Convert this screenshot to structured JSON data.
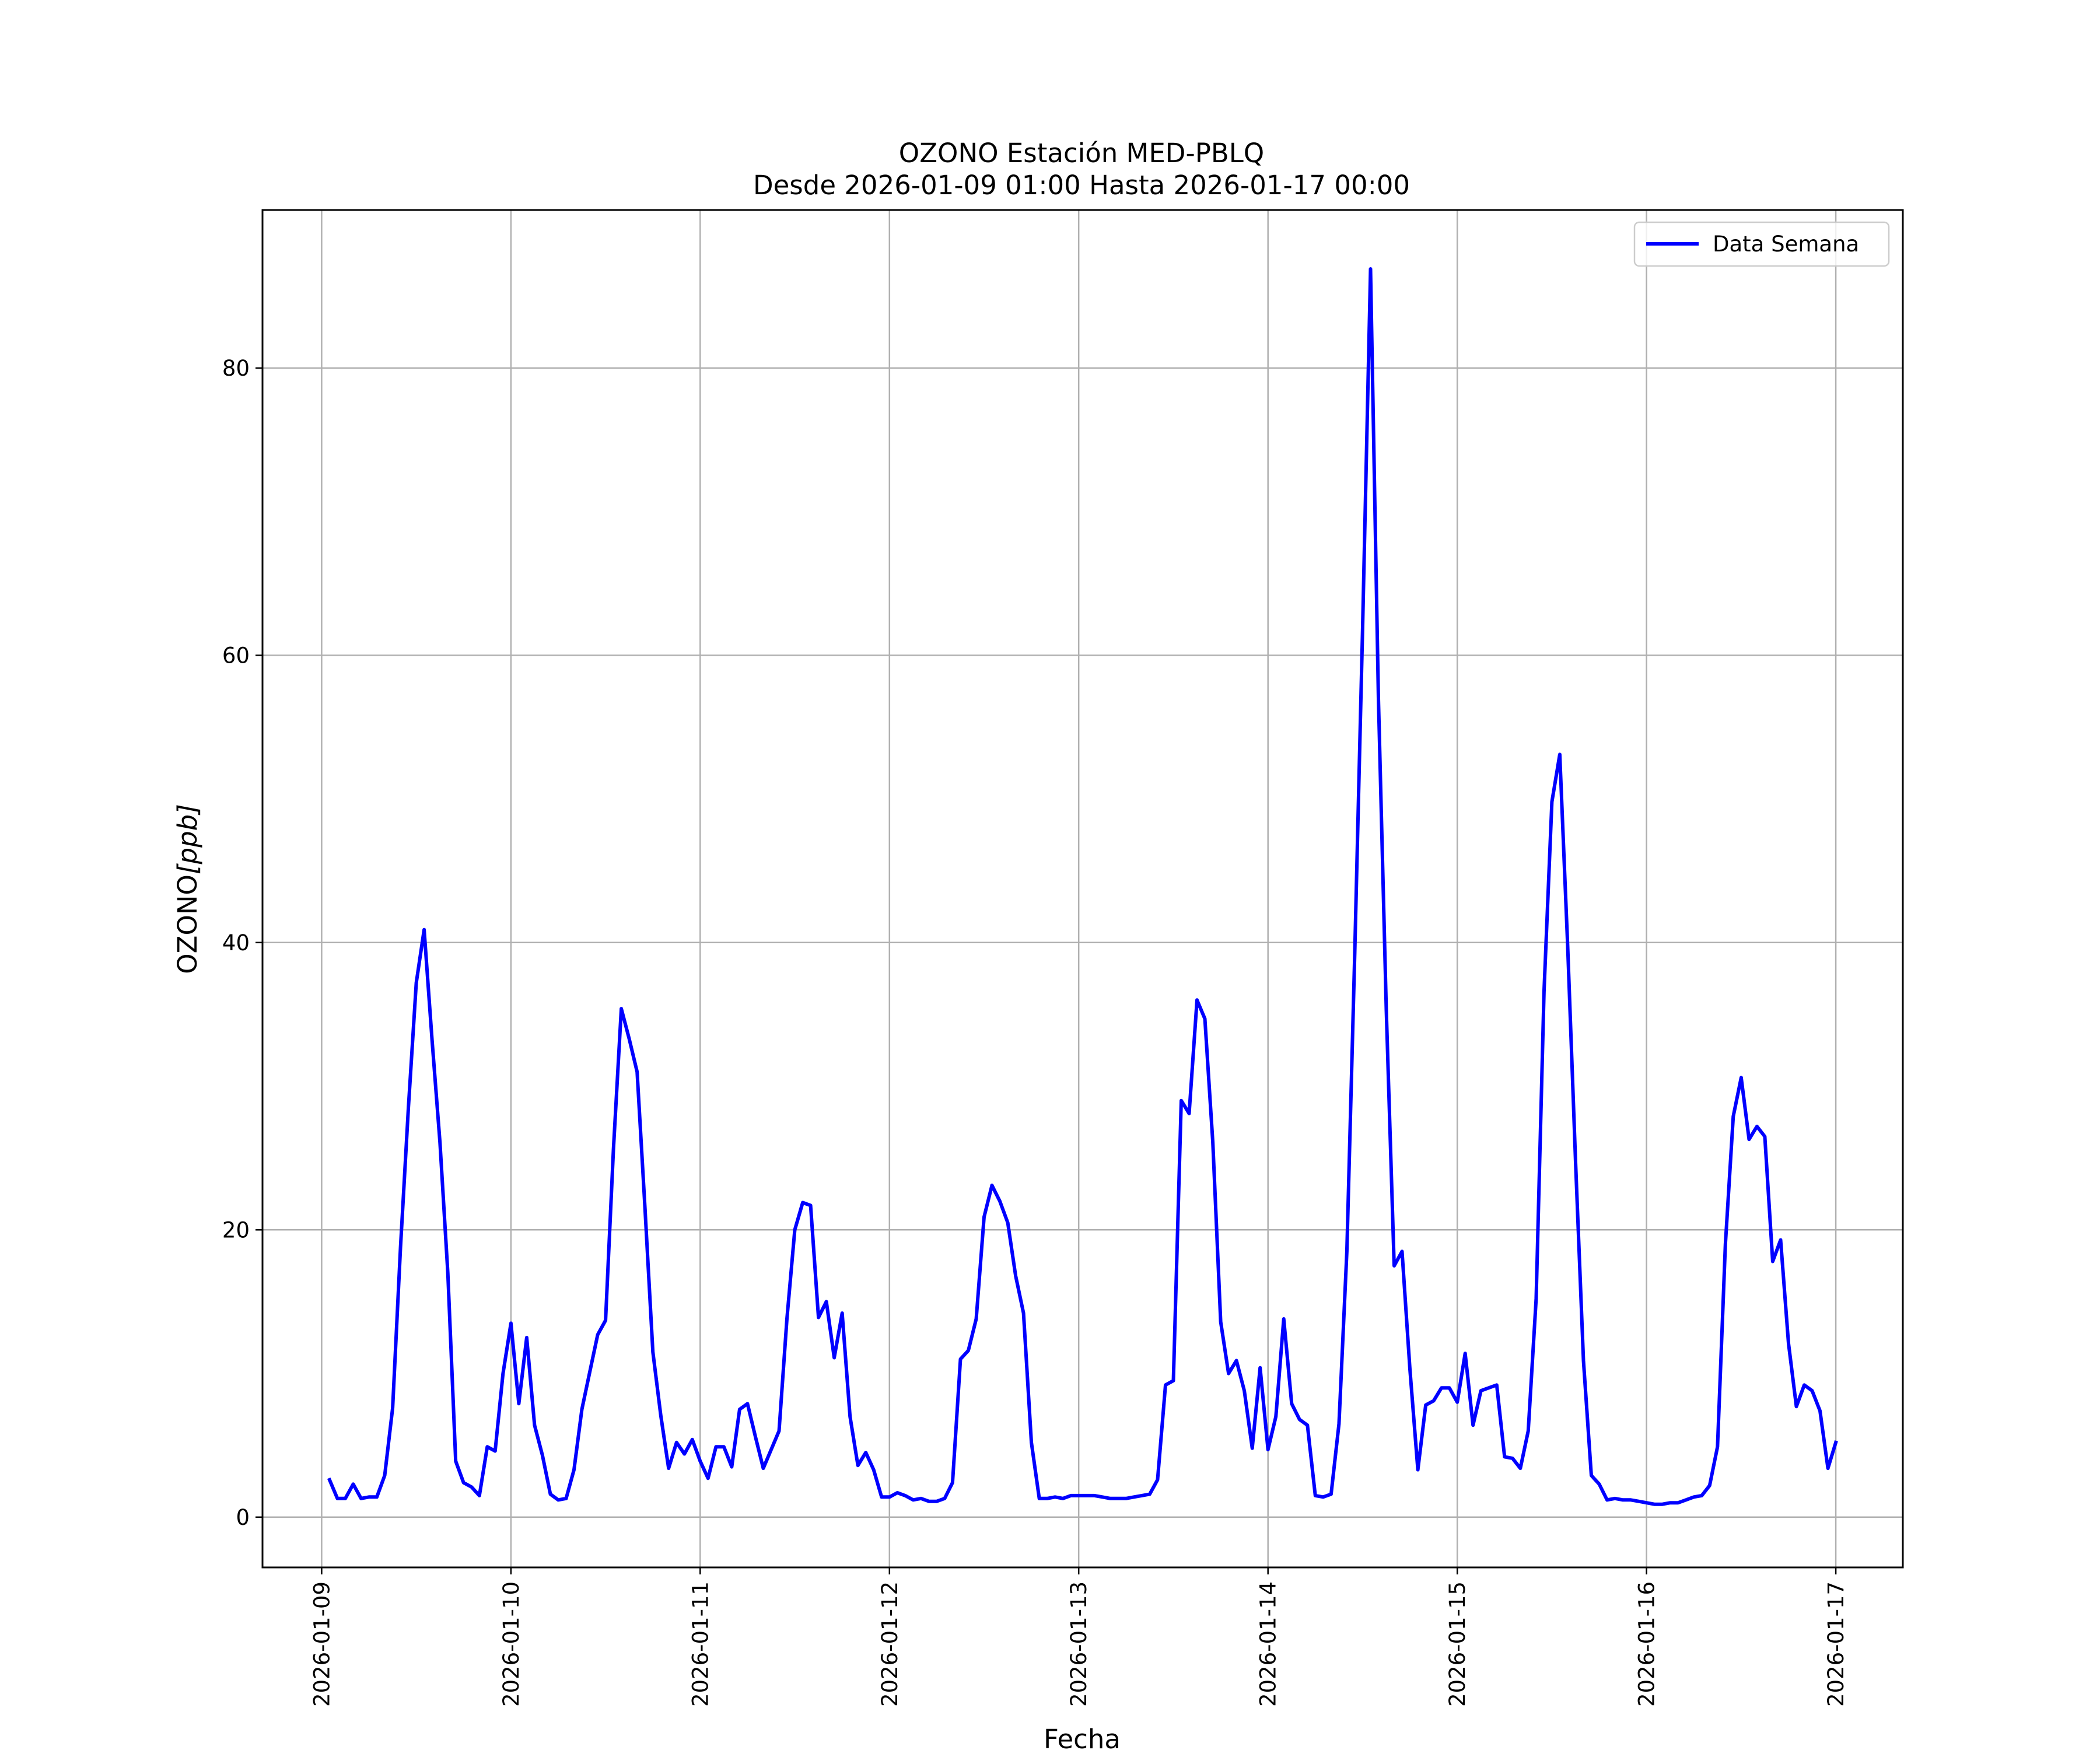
{
  "chart_data": {
    "type": "line",
    "title": "OZONO Estación MED-PBLQ",
    "subtitle": "Desde 2026-01-09 01:00 Hasta 2026-01-17 00:00",
    "xlabel": "Fecha",
    "ylabel_text": "OZONO",
    "ylabel_unit": "[ppb]",
    "ylim": [
      -3.5,
      91
    ],
    "xlim": [
      "2026-01-08 16:30",
      "2026-01-17 08:30"
    ],
    "grid": true,
    "legend_position": "top-right",
    "colors": {
      "series": "#0000ff",
      "grid": "#b0b0b0"
    },
    "x_ticks": [
      "2026-01-09",
      "2026-01-10",
      "2026-01-11",
      "2026-01-12",
      "2026-01-13",
      "2026-01-14",
      "2026-01-15",
      "2026-01-16",
      "2026-01-17"
    ],
    "y_ticks": [
      0,
      20,
      40,
      60,
      80
    ],
    "series": [
      {
        "name": "Data Semana",
        "color": "#0000ff",
        "x": [
          "2026-01-09 01:00",
          "2026-01-09 02:00",
          "2026-01-09 03:00",
          "2026-01-09 04:00",
          "2026-01-09 05:00",
          "2026-01-09 06:00",
          "2026-01-09 07:00",
          "2026-01-09 08:00",
          "2026-01-09 09:00",
          "2026-01-09 10:00",
          "2026-01-09 11:00",
          "2026-01-09 12:00",
          "2026-01-09 13:00",
          "2026-01-09 14:00",
          "2026-01-09 15:00",
          "2026-01-09 16:00",
          "2026-01-09 17:00",
          "2026-01-09 18:00",
          "2026-01-09 19:00",
          "2026-01-09 20:00",
          "2026-01-09 21:00",
          "2026-01-09 22:00",
          "2026-01-09 23:00",
          "2026-01-10 00:00",
          "2026-01-10 01:00",
          "2026-01-10 02:00",
          "2026-01-10 03:00",
          "2026-01-10 04:00",
          "2026-01-10 05:00",
          "2026-01-10 06:00",
          "2026-01-10 07:00",
          "2026-01-10 08:00",
          "2026-01-10 09:00",
          "2026-01-10 10:00",
          "2026-01-10 11:00",
          "2026-01-10 12:00",
          "2026-01-10 13:00",
          "2026-01-10 14:00",
          "2026-01-10 15:00",
          "2026-01-10 16:00",
          "2026-01-10 17:00",
          "2026-01-10 18:00",
          "2026-01-10 19:00",
          "2026-01-10 20:00",
          "2026-01-10 21:00",
          "2026-01-10 22:00",
          "2026-01-10 23:00",
          "2026-01-11 00:00",
          "2026-01-11 01:00",
          "2026-01-11 02:00",
          "2026-01-11 03:00",
          "2026-01-11 04:00",
          "2026-01-11 05:00",
          "2026-01-11 06:00",
          "2026-01-11 07:00",
          "2026-01-11 08:00",
          "2026-01-11 09:00",
          "2026-01-11 10:00",
          "2026-01-11 11:00",
          "2026-01-11 12:00",
          "2026-01-11 13:00",
          "2026-01-11 14:00",
          "2026-01-11 15:00",
          "2026-01-11 16:00",
          "2026-01-11 17:00",
          "2026-01-11 18:00",
          "2026-01-11 19:00",
          "2026-01-11 20:00",
          "2026-01-11 21:00",
          "2026-01-11 22:00",
          "2026-01-11 23:00",
          "2026-01-12 00:00",
          "2026-01-12 01:00",
          "2026-01-12 02:00",
          "2026-01-12 03:00",
          "2026-01-12 04:00",
          "2026-01-12 05:00",
          "2026-01-12 06:00",
          "2026-01-12 07:00",
          "2026-01-12 08:00",
          "2026-01-12 09:00",
          "2026-01-12 10:00",
          "2026-01-12 11:00",
          "2026-01-12 12:00",
          "2026-01-12 13:00",
          "2026-01-12 14:00",
          "2026-01-12 15:00",
          "2026-01-12 16:00",
          "2026-01-12 17:00",
          "2026-01-12 18:00",
          "2026-01-12 19:00",
          "2026-01-12 20:00",
          "2026-01-12 21:00",
          "2026-01-12 22:00",
          "2026-01-12 23:00",
          "2026-01-13 00:00",
          "2026-01-13 01:00",
          "2026-01-13 02:00",
          "2026-01-13 03:00",
          "2026-01-13 04:00",
          "2026-01-13 05:00",
          "2026-01-13 06:00",
          "2026-01-13 07:00",
          "2026-01-13 08:00",
          "2026-01-13 09:00",
          "2026-01-13 10:00",
          "2026-01-13 11:00",
          "2026-01-13 12:00",
          "2026-01-13 13:00",
          "2026-01-13 14:00",
          "2026-01-13 15:00",
          "2026-01-13 16:00",
          "2026-01-13 17:00",
          "2026-01-13 18:00",
          "2026-01-13 19:00",
          "2026-01-13 20:00",
          "2026-01-13 21:00",
          "2026-01-13 22:00",
          "2026-01-13 23:00",
          "2026-01-14 00:00",
          "2026-01-14 01:00",
          "2026-01-14 02:00",
          "2026-01-14 03:00",
          "2026-01-14 04:00",
          "2026-01-14 05:00",
          "2026-01-14 06:00",
          "2026-01-14 07:00",
          "2026-01-14 08:00",
          "2026-01-14 09:00",
          "2026-01-14 10:00",
          "2026-01-14 11:00",
          "2026-01-14 12:00",
          "2026-01-14 13:00",
          "2026-01-14 14:00",
          "2026-01-14 15:00",
          "2026-01-14 16:00",
          "2026-01-14 17:00",
          "2026-01-14 18:00",
          "2026-01-14 19:00",
          "2026-01-14 20:00",
          "2026-01-14 21:00",
          "2026-01-14 22:00",
          "2026-01-14 23:00",
          "2026-01-15 00:00",
          "2026-01-15 01:00",
          "2026-01-15 02:00",
          "2026-01-15 03:00",
          "2026-01-15 04:00",
          "2026-01-15 05:00",
          "2026-01-15 06:00",
          "2026-01-15 07:00",
          "2026-01-15 08:00",
          "2026-01-15 09:00",
          "2026-01-15 10:00",
          "2026-01-15 11:00",
          "2026-01-15 12:00",
          "2026-01-15 13:00",
          "2026-01-15 14:00",
          "2026-01-15 15:00",
          "2026-01-15 16:00",
          "2026-01-15 17:00",
          "2026-01-15 18:00",
          "2026-01-15 19:00",
          "2026-01-15 20:00",
          "2026-01-15 21:00",
          "2026-01-15 22:00",
          "2026-01-15 23:00",
          "2026-01-16 00:00",
          "2026-01-16 01:00",
          "2026-01-16 02:00",
          "2026-01-16 03:00",
          "2026-01-16 04:00",
          "2026-01-16 05:00",
          "2026-01-16 06:00",
          "2026-01-16 07:00",
          "2026-01-16 08:00",
          "2026-01-16 09:00",
          "2026-01-16 10:00",
          "2026-01-16 11:00",
          "2026-01-16 12:00",
          "2026-01-16 13:00",
          "2026-01-16 14:00",
          "2026-01-16 15:00",
          "2026-01-16 16:00",
          "2026-01-16 17:00",
          "2026-01-16 18:00",
          "2026-01-16 19:00",
          "2026-01-16 20:00",
          "2026-01-16 21:00",
          "2026-01-16 22:00",
          "2026-01-16 23:00",
          "2026-01-17 00:00"
        ],
        "values": [
          2.6,
          1.3,
          1.3,
          2.3,
          1.3,
          1.4,
          1.4,
          2.9,
          7.6,
          18.8,
          28.5,
          37.2,
          40.9,
          33.2,
          26.1,
          17.0,
          3.9,
          2.4,
          2.1,
          1.5,
          4.9,
          4.6,
          10.0,
          13.5,
          7.9,
          12.5,
          6.4,
          4.3,
          1.6,
          1.2,
          1.3,
          3.3,
          7.5,
          10.1,
          12.7,
          13.7,
          25.6,
          35.4,
          33.3,
          31.0,
          21.5,
          11.5,
          7.1,
          3.4,
          5.2,
          4.4,
          5.4,
          3.9,
          2.7,
          4.9,
          4.9,
          3.5,
          7.5,
          7.9,
          5.6,
          3.4,
          4.7,
          6.0,
          13.8,
          20.0,
          21.9,
          21.7,
          13.9,
          15.0,
          11.1,
          14.2,
          7.0,
          3.6,
          4.5,
          3.3,
          1.4,
          1.4,
          1.7,
          1.5,
          1.2,
          1.3,
          1.1,
          1.1,
          1.3,
          2.4,
          11.0,
          11.6,
          13.8,
          20.9,
          23.1,
          22.0,
          20.5,
          16.8,
          14.2,
          5.2,
          1.3,
          1.3,
          1.4,
          1.3,
          1.5,
          1.5,
          1.5,
          1.5,
          1.4,
          1.3,
          1.3,
          1.3,
          1.4,
          1.5,
          1.6,
          2.6,
          9.2,
          9.5,
          29.0,
          28.1,
          36.0,
          34.7,
          26.1,
          13.6,
          10.0,
          10.9,
          8.8,
          4.8,
          10.4,
          4.7,
          7.0,
          13.8,
          7.9,
          6.8,
          6.4,
          1.5,
          1.4,
          1.6,
          6.5,
          18.5,
          39.2,
          61.9,
          86.9,
          57.0,
          35.3,
          17.5,
          18.5,
          10.3,
          3.3,
          7.8,
          8.1,
          9.0,
          9.0,
          8.0,
          11.4,
          6.4,
          8.8,
          9.0,
          9.2,
          4.2,
          4.1,
          3.4,
          6.0,
          15.2,
          36.6,
          49.8,
          53.1,
          39.8,
          24.7,
          10.9,
          2.9,
          2.3,
          1.2,
          1.3,
          1.2,
          1.2,
          1.1,
          1.0,
          0.9,
          0.9,
          1.0,
          1.0,
          1.2,
          1.4,
          1.5,
          2.2,
          4.9,
          19.0,
          27.9,
          30.6,
          26.3,
          27.2,
          26.5,
          17.8,
          19.3,
          12.1,
          7.7,
          9.2,
          8.8,
          7.4,
          3.4,
          5.2
        ]
      }
    ]
  }
}
